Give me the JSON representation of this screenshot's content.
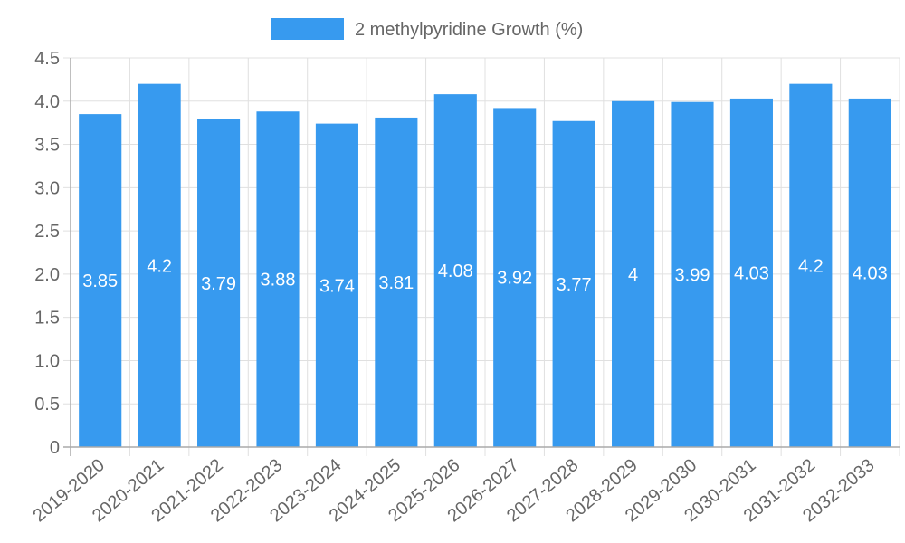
{
  "chart_data": {
    "type": "bar",
    "title": "",
    "xlabel": "",
    "ylabel": "",
    "ylim": [
      0,
      4.5
    ],
    "yticks": [
      "0",
      "0.5",
      "1.0",
      "1.5",
      "2.0",
      "2.5",
      "3.0",
      "3.5",
      "4.0",
      "4.5"
    ],
    "grid": true,
    "legend_position": "top",
    "categories": [
      "2019-2020",
      "2020-2021",
      "2021-2022",
      "2022-2023",
      "2023-2024",
      "2024-2025",
      "2025-2026",
      "2026-2027",
      "2027-2028",
      "2028-2029",
      "2029-2030",
      "2030-2031",
      "2031-2032",
      "2032-2033"
    ],
    "series": [
      {
        "name": "2 methylpyridine Growth (%)",
        "color": "#379AEF",
        "values": [
          3.85,
          4.2,
          3.79,
          3.88,
          3.74,
          3.81,
          4.08,
          3.92,
          3.77,
          4,
          3.99,
          4.03,
          4.2,
          4.03
        ],
        "data_labels": [
          "3.85",
          "4.2",
          "3.79",
          "3.88",
          "3.74",
          "3.81",
          "4.08",
          "3.92",
          "3.77",
          "4",
          "3.99",
          "4.03",
          "4.2",
          "4.03"
        ]
      }
    ]
  },
  "legend": {
    "label": "2 methylpyridine Growth (%)",
    "color": "#379AEF"
  },
  "colors": {
    "grid": "#e0e0e0",
    "axis": "#aaaaaa",
    "text": "#666666"
  }
}
